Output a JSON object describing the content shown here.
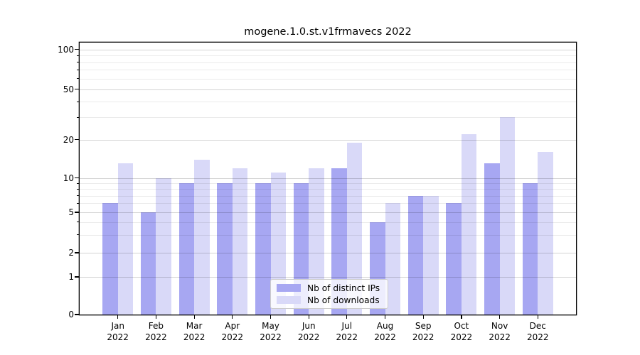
{
  "chart_data": {
    "type": "bar",
    "title": "mogene.1.0.st.v1frmavecs 2022",
    "categories": [
      "Jan 2022",
      "Feb 2022",
      "Mar 2022",
      "Apr 2022",
      "May 2022",
      "Jun 2022",
      "Jul 2022",
      "Aug 2022",
      "Sep 2022",
      "Oct 2022",
      "Nov 2022",
      "Dec 2022"
    ],
    "series": [
      {
        "name": "Nb of distinct IPs",
        "color": "#a7a7f2",
        "values": [
          6,
          5,
          9,
          9,
          9,
          9,
          12,
          4,
          7,
          6,
          13,
          9
        ]
      },
      {
        "name": "Nb of downloads",
        "color": "#d9d9f8",
        "values": [
          13,
          10,
          14,
          12,
          11,
          12,
          19,
          6,
          7,
          22,
          30,
          16
        ]
      }
    ],
    "yscale": "symlog",
    "ytick_labels": [
      "0",
      "1",
      "2",
      "5",
      "10",
      "20",
      "50",
      "100"
    ],
    "ytick_values": [
      0,
      1,
      2,
      5,
      10,
      20,
      50,
      100
    ],
    "y_minor_ticks": [
      3,
      4,
      6,
      7,
      8,
      9,
      30,
      40,
      60,
      70,
      80,
      90
    ],
    "ylim": [
      0,
      110
    ],
    "xlabel": "",
    "ylabel": "",
    "grid": "horizontal major and minor gridlines",
    "legend_position": "lower center inside plot",
    "background_color": "#ffffff",
    "spine_color": "#000000"
  }
}
